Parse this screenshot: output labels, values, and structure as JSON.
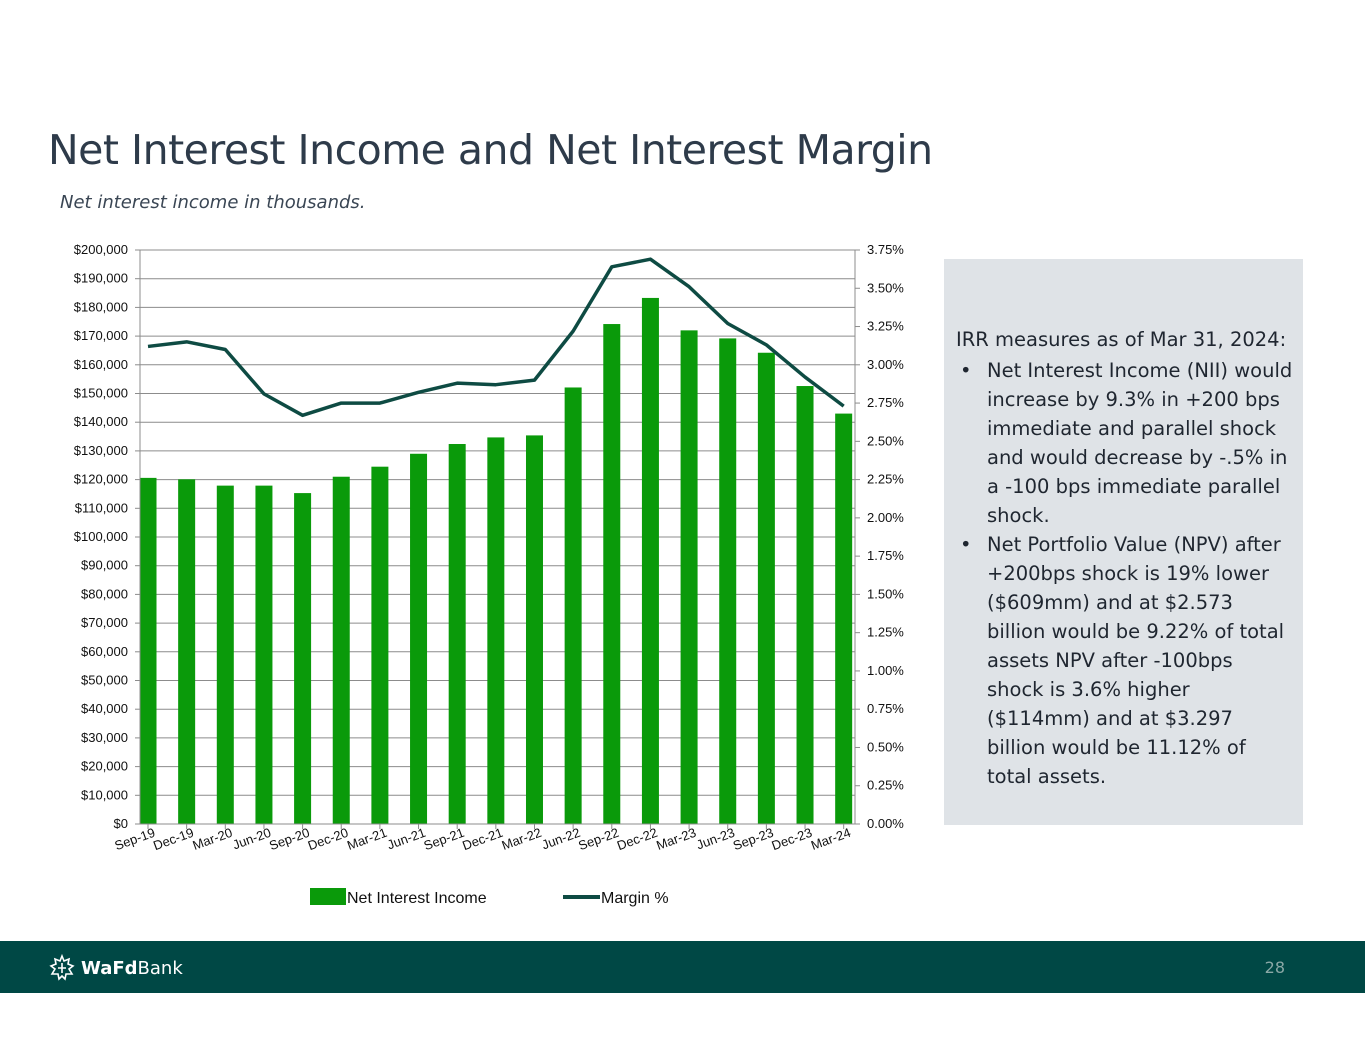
{
  "slide": {
    "title": "Net Interest Income and Net Interest Margin",
    "subtitle": "Net interest income in thousands.",
    "page_number": "28"
  },
  "brand": {
    "logo_bold": "WaFd",
    "logo_regular": "Bank",
    "footer_color": "#004845"
  },
  "panel": {
    "heading": "IRR measures as of Mar 31, 2024:",
    "bullet_symbol": "•",
    "bullets": [
      "Net Interest Income (NII) would increase by 9.3% in +200 bps immediate and parallel shock and would decrease by -.5% in a -100 bps immediate parallel shock.",
      "Net Portfolio Value (NPV) after +200bps shock is 19% lower ($609mm) and at $2.573 billion would be 9.22% of total assets   NPV after -100bps shock is 3.6% higher ($114mm) and at $3.297 billion would be 11.12% of total assets."
    ]
  },
  "chart_data": {
    "type": "bar",
    "title": "",
    "categories": [
      "Sep-19",
      "Dec-19",
      "Mar-20",
      "Jun-20",
      "Sep-20",
      "Dec-20",
      "Mar-21",
      "Jun-21",
      "Sep-21",
      "Dec-21",
      "Mar-22",
      "Jun-22",
      "Sep-22",
      "Dec-22",
      "Mar-23",
      "Jun-23",
      "Sep-23",
      "Dec-23",
      "Mar-24"
    ],
    "series": [
      {
        "name": "Net Interest Income",
        "kind": "bar",
        "axis": "left",
        "color": "#0a9a0a",
        "values": [
          120600,
          120100,
          117900,
          117900,
          115300,
          121000,
          124500,
          129000,
          132400,
          134700,
          135400,
          152100,
          174200,
          183300,
          172000,
          169200,
          164200,
          152600,
          143000
        ]
      },
      {
        "name": "Margin %",
        "kind": "line",
        "axis": "right",
        "color": "#0e4b43",
        "values": [
          3.12,
          3.15,
          3.1,
          2.81,
          2.67,
          2.75,
          2.75,
          2.82,
          2.88,
          2.87,
          2.9,
          3.22,
          3.64,
          3.69,
          3.51,
          3.27,
          3.13,
          2.92,
          2.73
        ]
      }
    ],
    "left_axis": {
      "ylim": [
        0,
        200000
      ],
      "ticks": [
        "$0",
        "$10,000",
        "$20,000",
        "$30,000",
        "$40,000",
        "$50,000",
        "$60,000",
        "$70,000",
        "$80,000",
        "$90,000",
        "$100,000",
        "$110,000",
        "$120,000",
        "$130,000",
        "$140,000",
        "$150,000",
        "$160,000",
        "$170,000",
        "$180,000",
        "$190,000",
        "$200,000"
      ]
    },
    "right_axis": {
      "ylim": [
        0,
        3.75
      ],
      "ticks": [
        "0.00%",
        "0.25%",
        "0.50%",
        "0.75%",
        "1.00%",
        "1.25%",
        "1.50%",
        "1.75%",
        "2.00%",
        "2.25%",
        "2.50%",
        "2.75%",
        "3.00%",
        "3.25%",
        "3.50%",
        "3.75%"
      ]
    },
    "grid": true,
    "legend_position": "bottom"
  }
}
